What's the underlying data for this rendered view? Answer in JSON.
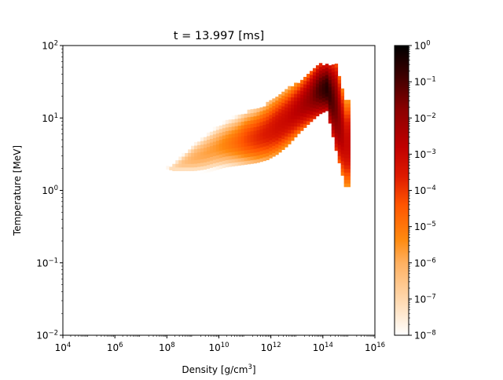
{
  "chart_data": {
    "type": "heatmap",
    "title": "t = 13.997 [ms]",
    "xlabel": "Density [g/cm",
    "xlabel_sup": "3",
    "xlabel_end": "]",
    "ylabel": "Temperature [MeV]",
    "x_scale": "log",
    "y_scale": "log",
    "xlim": [
      10000,
      10000000000000000
    ],
    "ylim": [
      0.01,
      100
    ],
    "x_ticks": [
      {
        "base": "10",
        "exp": "4",
        "value": 10000
      },
      {
        "base": "10",
        "exp": "6",
        "value": 1000000
      },
      {
        "base": "10",
        "exp": "8",
        "value": 100000000
      },
      {
        "base": "10",
        "exp": "10",
        "value": 10000000000
      },
      {
        "base": "10",
        "exp": "12",
        "value": 1000000000000
      },
      {
        "base": "10",
        "exp": "14",
        "value": 100000000000000
      },
      {
        "base": "10",
        "exp": "16",
        "value": 10000000000000000
      }
    ],
    "y_ticks": [
      {
        "base": "10",
        "exp": "−2",
        "value": 0.01
      },
      {
        "base": "10",
        "exp": "−1",
        "value": 0.1
      },
      {
        "base": "10",
        "exp": "0",
        "value": 1
      },
      {
        "base": "10",
        "exp": "1",
        "value": 10
      },
      {
        "base": "10",
        "exp": "2",
        "value": 100
      }
    ],
    "colorbar": {
      "scale": "log",
      "range": [
        1e-08,
        1
      ],
      "colormap": "gist_heat_r",
      "ticks": [
        {
          "base": "10",
          "exp": "−8",
          "value": 1e-08
        },
        {
          "base": "10",
          "exp": "−7",
          "value": 1e-07
        },
        {
          "base": "10",
          "exp": "−6",
          "value": 1e-06
        },
        {
          "base": "10",
          "exp": "−5",
          "value": 1e-05
        },
        {
          "base": "10",
          "exp": "−4",
          "value": 0.0001
        },
        {
          "base": "10",
          "exp": "−3",
          "value": 0.001
        },
        {
          "base": "10",
          "exp": "−2",
          "value": 0.01
        },
        {
          "base": "10",
          "exp": "−1",
          "value": 0.1
        },
        {
          "base": "10",
          "exp": "0",
          "value": 1
        }
      ]
    },
    "heat_columns": [
      {
        "log_rho": 7.9,
        "log_t_min": 0.25,
        "log_t_max": 0.33,
        "log_peak": -7.5
      },
      {
        "log_rho": 8.2,
        "log_t_min": 0.22,
        "log_t_max": 0.42,
        "log_peak": -7.0
      },
      {
        "log_rho": 8.6,
        "log_t_min": 0.22,
        "log_t_max": 0.55,
        "log_peak": -6.4
      },
      {
        "log_rho": 9.0,
        "log_t_min": 0.22,
        "log_t_max": 0.68,
        "log_peak": -6.0
      },
      {
        "log_rho": 9.4,
        "log_t_min": 0.24,
        "log_t_max": 0.78,
        "log_peak": -5.8
      },
      {
        "log_rho": 9.8,
        "log_t_min": 0.28,
        "log_t_max": 0.88,
        "log_peak": -5.6
      },
      {
        "log_rho": 10.2,
        "log_t_min": 0.32,
        "log_t_max": 0.95,
        "log_peak": -5.2
      },
      {
        "log_rho": 10.6,
        "log_t_min": 0.34,
        "log_t_max": 1.0,
        "log_peak": -4.8
      },
      {
        "log_rho": 11.0,
        "log_t_min": 0.36,
        "log_t_max": 1.06,
        "log_peak": -4.2
      },
      {
        "log_rho": 11.4,
        "log_t_min": 0.38,
        "log_t_max": 1.1,
        "log_peak": -3.8
      },
      {
        "log_rho": 11.8,
        "log_t_min": 0.42,
        "log_t_max": 1.18,
        "log_peak": -3.5
      },
      {
        "log_rho": 12.2,
        "log_t_min": 0.5,
        "log_t_max": 1.28,
        "log_peak": -3.2
      },
      {
        "log_rho": 12.6,
        "log_t_min": 0.62,
        "log_t_max": 1.38,
        "log_peak": -3.0
      },
      {
        "log_rho": 13.0,
        "log_t_min": 0.78,
        "log_t_max": 1.48,
        "log_peak": -2.6
      },
      {
        "log_rho": 13.4,
        "log_t_min": 0.92,
        "log_t_max": 1.6,
        "log_peak": -2.0
      },
      {
        "log_rho": 13.8,
        "log_t_min": 1.05,
        "log_t_max": 1.72,
        "log_peak": -1.0
      },
      {
        "log_rho": 14.1,
        "log_t_min": 1.1,
        "log_t_max": 1.72,
        "log_peak": -0.5
      },
      {
        "log_rho": 14.45,
        "log_t_min": 0.55,
        "log_t_max": 1.72,
        "log_peak": -1.5
      },
      {
        "log_rho": 14.8,
        "log_t_min": 0.05,
        "log_t_max": 1.25,
        "log_peak": -3.0
      }
    ]
  }
}
